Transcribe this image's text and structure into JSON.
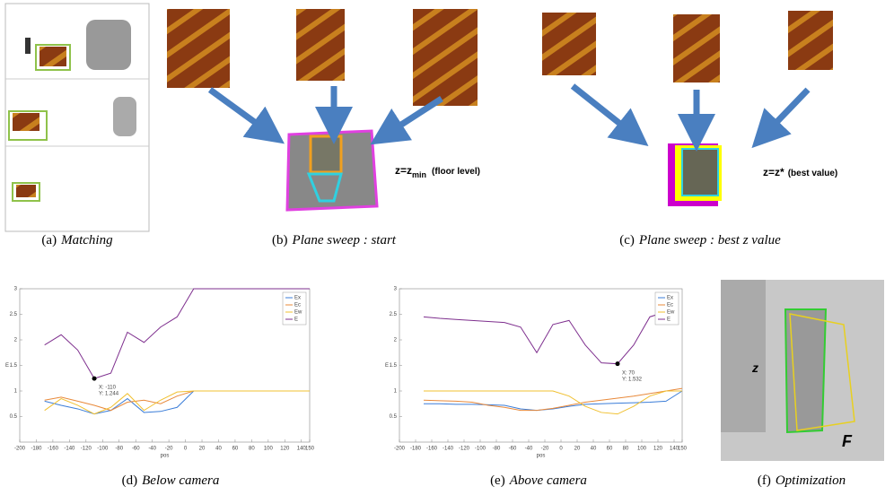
{
  "captions": [
    {
      "label": "(a)",
      "text": "Matching"
    },
    {
      "label": "(b)",
      "text": "Plane sweep : start"
    },
    {
      "label": "(c)",
      "text": "Plane sweep : best z value"
    },
    {
      "label": "(d)",
      "text": "Below camera"
    },
    {
      "label": "(e)",
      "text": "Above camera"
    },
    {
      "label": "(f)",
      "text": "Optimization"
    }
  ],
  "annotations": {
    "start": {
      "eq": "z=z",
      "sub": "min",
      "note": "(floor level)"
    },
    "best": {
      "eq": "z=z*",
      "note": "(best value)"
    },
    "photo_z": "z",
    "photo_f": "F"
  },
  "chart_data": [
    {
      "type": "line",
      "x_label": "pos",
      "y_label": "E",
      "legend": "upper right",
      "grid": false,
      "xlim": [
        -200,
        150
      ],
      "xticks": [
        -200,
        -180,
        -160,
        -140,
        -120,
        -100,
        -80,
        -60,
        -40,
        -20,
        0,
        20,
        40,
        60,
        80,
        100,
        120,
        140,
        150
      ],
      "ylim": [
        0,
        3
      ],
      "yticks": [
        0.5,
        1,
        1.5,
        2,
        2.5,
        3
      ],
      "x": [
        -170,
        -150,
        -130,
        -110,
        -90,
        -70,
        -50,
        -30,
        -10,
        10,
        30,
        50,
        70,
        90,
        110,
        130,
        150
      ],
      "series": [
        {
          "name": "Ex",
          "color": "#3b7dd8",
          "values": [
            0.8,
            0.72,
            0.65,
            0.55,
            0.62,
            0.85,
            0.58,
            0.6,
            0.68,
            1.0,
            null,
            null,
            null,
            null,
            null,
            null,
            null
          ]
        },
        {
          "name": "Ec",
          "color": "#e8893a",
          "values": [
            0.82,
            0.88,
            0.8,
            0.72,
            0.62,
            0.78,
            0.82,
            0.75,
            0.9,
            1.0,
            1,
            1,
            1,
            1,
            1,
            1,
            1
          ]
        },
        {
          "name": "Ew",
          "color": "#f0c030",
          "values": [
            0.62,
            0.85,
            0.72,
            0.55,
            0.68,
            0.95,
            0.62,
            0.82,
            0.98,
            1.0,
            1,
            1,
            1,
            1,
            1,
            1,
            1
          ]
        },
        {
          "name": "E",
          "color": "#7e2f8e",
          "values": [
            1.9,
            2.1,
            1.8,
            1.244,
            1.35,
            2.15,
            1.95,
            2.25,
            2.45,
            3,
            3,
            3,
            3,
            3,
            3,
            3,
            3
          ]
        }
      ],
      "datatip": {
        "series": 3,
        "index": 3,
        "lines": [
          "X: -110",
          "Y: 1.244"
        ]
      }
    },
    {
      "type": "line",
      "x_label": "pos",
      "y_label": "E",
      "legend": "upper right",
      "grid": false,
      "xlim": [
        -200,
        150
      ],
      "xticks": [
        -200,
        -180,
        -160,
        -140,
        -120,
        -100,
        -80,
        -60,
        -40,
        -20,
        0,
        20,
        40,
        60,
        80,
        100,
        120,
        140,
        150
      ],
      "ylim": [
        0,
        3
      ],
      "yticks": [
        0.5,
        1,
        1.5,
        2,
        2.5,
        3
      ],
      "x": [
        -170,
        -150,
        -130,
        -110,
        -90,
        -70,
        -50,
        -30,
        -10,
        10,
        30,
        50,
        70,
        90,
        110,
        130,
        150
      ],
      "series": [
        {
          "name": "Ex",
          "color": "#3b7dd8",
          "values": [
            0.75,
            0.75,
            0.74,
            0.74,
            0.73,
            0.72,
            0.65,
            0.62,
            0.65,
            0.7,
            0.74,
            0.75,
            0.76,
            0.77,
            0.78,
            0.8,
            1.0
          ]
        },
        {
          "name": "Ec",
          "color": "#e8893a",
          "values": [
            0.82,
            0.81,
            0.8,
            0.78,
            0.72,
            0.68,
            0.62,
            0.62,
            0.66,
            0.72,
            0.78,
            0.82,
            0.86,
            0.9,
            0.95,
            1.0,
            1.05
          ]
        },
        {
          "name": "Ew",
          "color": "#f0c030",
          "values": [
            1,
            1,
            1,
            1,
            1,
            1,
            1,
            1,
            1,
            0.9,
            0.7,
            0.58,
            0.55,
            0.7,
            0.9,
            1.0,
            1.0
          ]
        },
        {
          "name": "E",
          "color": "#7e2f8e",
          "values": [
            2.45,
            2.42,
            2.4,
            2.38,
            2.36,
            2.34,
            2.25,
            1.75,
            2.3,
            2.38,
            1.9,
            1.55,
            1.532,
            1.9,
            2.45,
            2.55,
            null
          ]
        }
      ],
      "datatip": {
        "series": 3,
        "index": 12,
        "lines": [
          "X: 70",
          "Y: 1.532"
        ]
      }
    }
  ]
}
